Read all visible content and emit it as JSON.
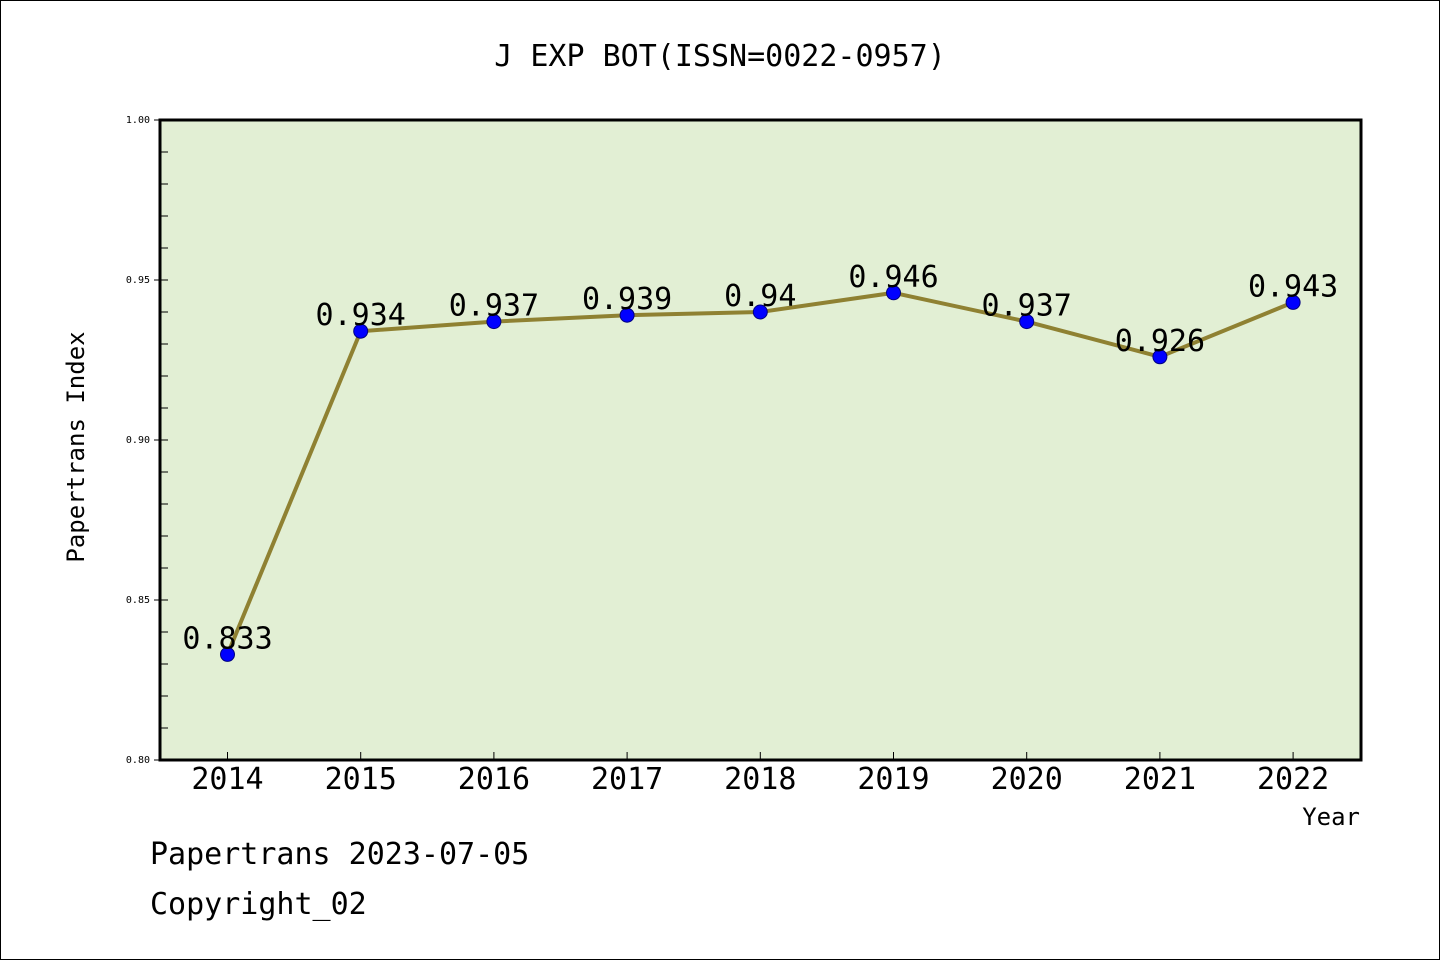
{
  "chart_data": {
    "type": "line",
    "title": "J EXP BOT(ISSN=0022-0957)",
    "xlabel": "Year",
    "ylabel": "Papertrans Index",
    "categories": [
      "2014",
      "2015",
      "2016",
      "2017",
      "2018",
      "2019",
      "2020",
      "2021",
      "2022"
    ],
    "values": [
      0.833,
      0.934,
      0.937,
      0.939,
      0.94,
      0.946,
      0.937,
      0.926,
      0.943
    ],
    "data_labels": [
      "0.833",
      "0.934",
      "0.937",
      "0.939",
      "0.94",
      "0.946",
      "0.937",
      "0.926",
      "0.943"
    ],
    "ylim": [
      0.8,
      1.0
    ],
    "yticks": [
      "0.80",
      "0.85",
      "0.90",
      "0.95",
      "1.00"
    ],
    "grid": false,
    "plot_background": "#e2efd4",
    "line_color": "#8f8132",
    "marker_color": "#0000ff"
  },
  "footer": {
    "line1": "Papertrans 2023-07-05",
    "line2": "Copyright_02"
  }
}
